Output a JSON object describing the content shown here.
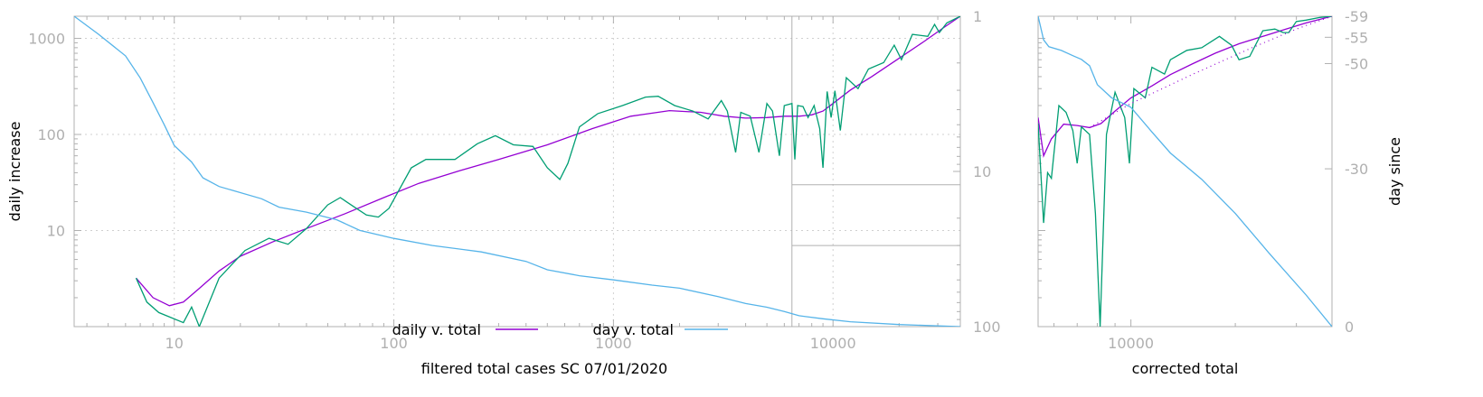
{
  "chart_data": [
    {
      "type": "line",
      "xlabel": "filtered total cases SC 07/01/2020",
      "ylabel": "daily increase",
      "y2label": "",
      "x_scale": "log",
      "y_scale": "log",
      "xlim": [
        3.5,
        38000
      ],
      "ylim": [
        1,
        1700
      ],
      "y2lim": [
        1,
        100
      ],
      "y2_scale": "log-reversed",
      "grid": true,
      "legend_position": "bottom-center",
      "x_ticks": [
        {
          "v": 10,
          "label": "10"
        },
        {
          "v": 100,
          "label": "100"
        },
        {
          "v": 1000,
          "label": "1000"
        },
        {
          "v": 10000,
          "label": "10000"
        }
      ],
      "y_ticks": [
        {
          "v": 10,
          "label": "10"
        },
        {
          "v": 100,
          "label": "100"
        },
        {
          "v": 1000,
          "label": "1000"
        }
      ],
      "y2_ticks": [
        {
          "v": 1,
          "label": "1"
        },
        {
          "v": 10,
          "label": "10"
        },
        {
          "v": 100,
          "label": "100"
        }
      ],
      "series": [
        {
          "name": "daily v. total",
          "color": "#9400d3",
          "axis": "y",
          "points": [
            [
              6.7,
              3.2
            ],
            [
              8,
              2
            ],
            [
              9.5,
              1.65
            ],
            [
              11,
              1.8
            ],
            [
              13,
              2.5
            ],
            [
              16,
              3.8
            ],
            [
              20,
              5.4
            ],
            [
              28,
              7.6
            ],
            [
              40,
              10.5
            ],
            [
              60,
              15
            ],
            [
              90,
              22
            ],
            [
              130,
              31
            ],
            [
              200,
              42
            ],
            [
              300,
              55
            ],
            [
              500,
              78
            ],
            [
              800,
              115
            ],
            [
              1200,
              155
            ],
            [
              1800,
              177
            ],
            [
              2500,
              170
            ],
            [
              3200,
              155
            ],
            [
              4000,
              148
            ],
            [
              5000,
              150
            ],
            [
              6000,
              155
            ],
            [
              7000,
              155
            ],
            [
              8000,
              160
            ],
            [
              9000,
              175
            ],
            [
              10000,
              210
            ],
            [
              12000,
              290
            ],
            [
              15000,
              400
            ],
            [
              20000,
              620
            ],
            [
              26000,
              930
            ],
            [
              32000,
              1300
            ],
            [
              38000,
              1700
            ]
          ]
        },
        {
          "name": "",
          "color": "#009e73",
          "axis": "y",
          "points": [
            [
              6.7,
              3.2
            ],
            [
              7.5,
              1.8
            ],
            [
              8.5,
              1.4
            ],
            [
              11,
              1.1
            ],
            [
              12,
              1.6
            ],
            [
              13,
              1
            ],
            [
              16,
              3.2
            ],
            [
              21,
              6.2
            ],
            [
              27,
              8.3
            ],
            [
              33,
              7.2
            ],
            [
              40,
              10.5
            ],
            [
              50,
              18.5
            ],
            [
              57,
              22
            ],
            [
              65,
              18
            ],
            [
              75,
              14.5
            ],
            [
              85,
              13.8
            ],
            [
              95,
              17
            ],
            [
              120,
              45
            ],
            [
              140,
              55
            ],
            [
              190,
              55
            ],
            [
              240,
              80
            ],
            [
              290,
              97
            ],
            [
              350,
              78
            ],
            [
              430,
              75
            ],
            [
              500,
              45
            ],
            [
              570,
              34
            ],
            [
              620,
              50
            ],
            [
              700,
              120
            ],
            [
              850,
              165
            ],
            [
              1100,
              200
            ],
            [
              1400,
              245
            ],
            [
              1600,
              250
            ],
            [
              1900,
              200
            ],
            [
              2300,
              175
            ],
            [
              2700,
              145
            ],
            [
              3100,
              225
            ],
            [
              3300,
              175
            ],
            [
              3600,
              65
            ],
            [
              3800,
              170
            ],
            [
              4200,
              155
            ],
            [
              4600,
              65
            ],
            [
              5000,
              210
            ],
            [
              5300,
              175
            ],
            [
              5700,
              60
            ],
            [
              6000,
              200
            ],
            [
              6500,
              210
            ],
            [
              6700,
              55
            ],
            [
              6900,
              200
            ],
            [
              7300,
              195
            ],
            [
              7700,
              150
            ],
            [
              8200,
              200
            ],
            [
              8700,
              115
            ],
            [
              9000,
              45
            ],
            [
              9400,
              280
            ],
            [
              9800,
              150
            ],
            [
              10200,
              285
            ],
            [
              10800,
              110
            ],
            [
              11500,
              390
            ],
            [
              13000,
              300
            ],
            [
              14500,
              480
            ],
            [
              17000,
              560
            ],
            [
              19000,
              850
            ],
            [
              20500,
              600
            ],
            [
              23000,
              1100
            ],
            [
              27000,
              1050
            ],
            [
              29000,
              1400
            ],
            [
              30500,
              1150
            ],
            [
              33000,
              1450
            ],
            [
              38000,
              1700
            ]
          ]
        },
        {
          "name": "day v. total",
          "color": "#56b4e9",
          "axis": "y2",
          "points": [
            [
              3.5,
              1
            ],
            [
              4.5,
              1.3
            ],
            [
              6,
              1.8
            ],
            [
              7,
              2.5
            ],
            [
              8,
              3.6
            ],
            [
              9,
              5
            ],
            [
              10,
              6.8
            ],
            [
              12,
              8.7
            ],
            [
              13.5,
              11
            ],
            [
              16,
              12.5
            ],
            [
              25,
              15
            ],
            [
              30,
              17
            ],
            [
              40,
              18.3
            ],
            [
              55,
              20.5
            ],
            [
              70,
              24
            ],
            [
              100,
              27
            ],
            [
              150,
              30
            ],
            [
              250,
              33
            ],
            [
              400,
              38
            ],
            [
              500,
              43
            ],
            [
              700,
              47
            ],
            [
              1000,
              50
            ],
            [
              1500,
              54
            ],
            [
              2000,
              56.5
            ],
            [
              3000,
              64
            ],
            [
              4000,
              71
            ],
            [
              5000,
              75
            ],
            [
              6000,
              80
            ],
            [
              7000,
              85
            ],
            [
              9000,
              89
            ],
            [
              12000,
              93
            ],
            [
              20000,
              97
            ],
            [
              38000,
              100
            ]
          ]
        }
      ]
    },
    {
      "type": "line",
      "xlabel": "corrected total",
      "ylabel": "",
      "y2label": "day since",
      "x_scale": "log",
      "y_scale": "log",
      "xlim": [
        5400,
        38000
      ],
      "ylim": [
        1,
        1700
      ],
      "y2lim": [
        0,
        59
      ],
      "y2_scale": "reciprocal",
      "grid": false,
      "x_ticks": [
        {
          "v": 10000,
          "label": "10000"
        }
      ],
      "y2_ticks": [
        {
          "v": 59,
          "label": "-59"
        },
        {
          "v": 55,
          "label": "-55"
        },
        {
          "v": 50,
          "label": "-50"
        },
        {
          "v": 30,
          "label": "-30"
        },
        {
          "v": 0,
          "label": "0"
        }
      ],
      "series": [
        {
          "name": "",
          "color": "#9400d3",
          "axis": "y",
          "points": [
            [
              5400,
              150
            ],
            [
              5600,
              60
            ],
            [
              5900,
              90
            ],
            [
              6400,
              128
            ],
            [
              7000,
              124
            ],
            [
              7600,
              118
            ],
            [
              8200,
              130
            ],
            [
              9000,
              175
            ],
            [
              10000,
              240
            ],
            [
              11500,
              320
            ],
            [
              13000,
              420
            ],
            [
              15000,
              540
            ],
            [
              17500,
              700
            ],
            [
              20500,
              880
            ],
            [
              24000,
              1050
            ],
            [
              28000,
              1250
            ],
            [
              32000,
              1450
            ],
            [
              38000,
              1700
            ]
          ]
        },
        {
          "name": "",
          "color": "#009e73",
          "axis": "y",
          "points": [
            [
              5400,
              130
            ],
            [
              5600,
              12
            ],
            [
              5750,
              40
            ],
            [
              5900,
              35
            ],
            [
              6200,
              200
            ],
            [
              6500,
              170
            ],
            [
              6800,
              110
            ],
            [
              7000,
              50
            ],
            [
              7200,
              120
            ],
            [
              7600,
              100
            ],
            [
              7900,
              15
            ],
            [
              8150,
              1
            ],
            [
              8500,
              100
            ],
            [
              9000,
              275
            ],
            [
              9600,
              150
            ],
            [
              9900,
              50
            ],
            [
              10200,
              300
            ],
            [
              11000,
              240
            ],
            [
              11500,
              500
            ],
            [
              12500,
              425
            ],
            [
              13000,
              600
            ],
            [
              14500,
              750
            ],
            [
              16000,
              800
            ],
            [
              18000,
              1050
            ],
            [
              19500,
              850
            ],
            [
              20500,
              600
            ],
            [
              22000,
              650
            ],
            [
              24000,
              1200
            ],
            [
              26000,
              1250
            ],
            [
              27500,
              1150
            ],
            [
              28500,
              1150
            ],
            [
              30000,
              1500
            ],
            [
              32000,
              1550
            ],
            [
              35000,
              1650
            ],
            [
              38000,
              1700
            ]
          ]
        },
        {
          "name": "",
          "color": "#9400d3",
          "axis": "y",
          "dashed": true,
          "points": [
            [
              7600,
              118
            ],
            [
              10000,
              210
            ],
            [
              15000,
              420
            ],
            [
              22000,
              780
            ],
            [
              30000,
              1250
            ],
            [
              38000,
              1700
            ]
          ]
        },
        {
          "name": "",
          "color": "#56b4e9",
          "axis": "y2",
          "points": [
            [
              5400,
              59
            ],
            [
              5600,
              54.5
            ],
            [
              5800,
              53.2
            ],
            [
              6300,
              52.5
            ],
            [
              6800,
              51.5
            ],
            [
              7200,
              50.8
            ],
            [
              7600,
              49.6
            ],
            [
              8000,
              46
            ],
            [
              8800,
              43.5
            ],
            [
              10000,
              41.7
            ],
            [
              11500,
              37
            ],
            [
              13000,
              33
            ],
            [
              16000,
              28
            ],
            [
              20000,
              21.5
            ],
            [
              25000,
              14
            ],
            [
              32000,
              6
            ],
            [
              38000,
              0
            ]
          ]
        }
      ]
    }
  ],
  "legend": {
    "entries": [
      {
        "label": "daily v. total",
        "color": "#9400d3"
      },
      {
        "label": "day v. total",
        "color": "#56b4e9"
      }
    ]
  },
  "inset_marker": {
    "x_from": 6500,
    "y_low": 30,
    "y_high": 1700
  },
  "colors": {
    "axis": "#b0b0b0",
    "grid": "#d0d0d0",
    "text": "#000000"
  }
}
